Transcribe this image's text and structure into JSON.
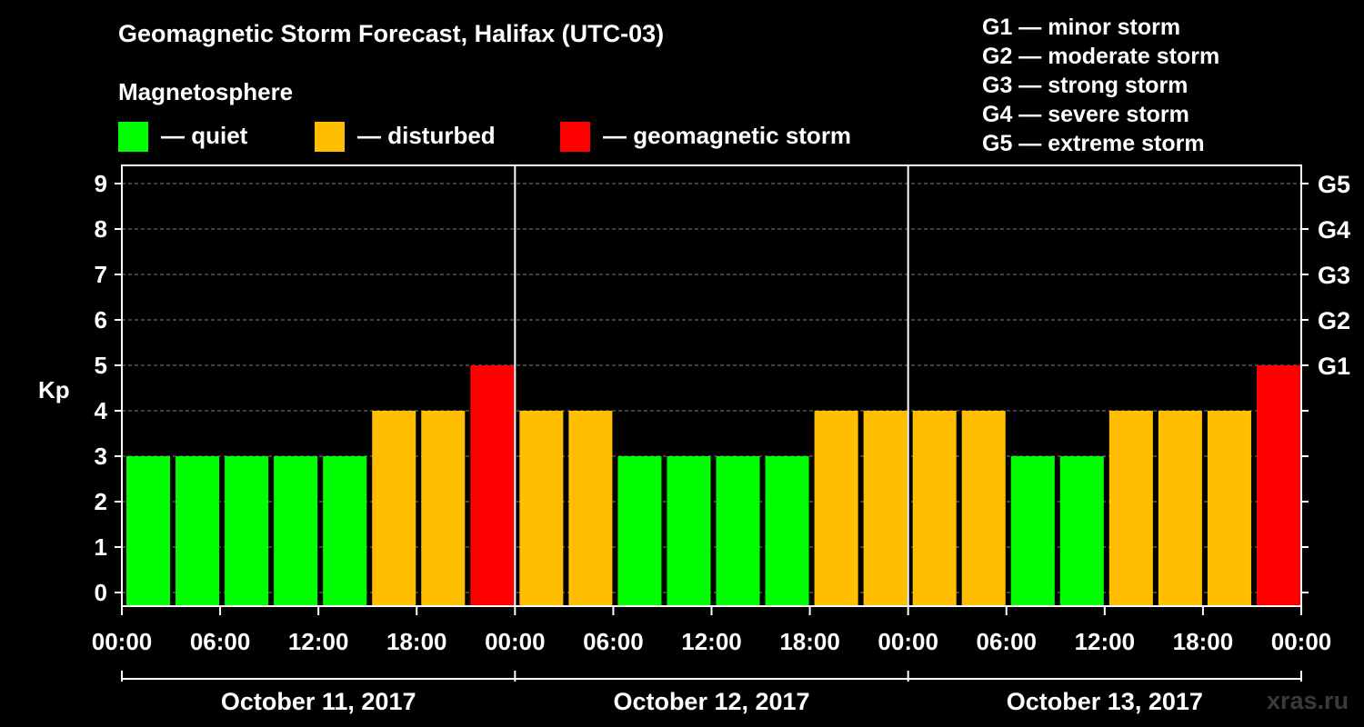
{
  "title": "Geomagnetic Storm Forecast, Halifax (UTC-03)",
  "magnetosphere": {
    "title": "Magnetosphere",
    "legend": [
      {
        "label": "— quiet",
        "color": "#00ff00"
      },
      {
        "label": "— disturbed",
        "color": "#ffbf00"
      },
      {
        "label": "— geomagnetic storm",
        "color": "#ff0000"
      }
    ]
  },
  "storm_scale": [
    "G1 — minor storm",
    "G2 — moderate storm",
    "G3 — strong storm",
    "G4 — severe storm",
    "G5 — extreme storm"
  ],
  "watermark": "xras.ru",
  "chart_data": {
    "type": "bar",
    "title": "Geomagnetic Storm Forecast, Halifax (UTC-03)",
    "ylabel": "Kp",
    "ylim": [
      0,
      9
    ],
    "yticks": [
      "0",
      "1",
      "2",
      "3",
      "4",
      "5",
      "6",
      "7",
      "8",
      "9"
    ],
    "right_ticks": [
      {
        "value": 5,
        "label": "G1"
      },
      {
        "value": 6,
        "label": "G2"
      },
      {
        "value": 7,
        "label": "G3"
      },
      {
        "value": 8,
        "label": "G4"
      },
      {
        "value": 9,
        "label": "G5"
      }
    ],
    "grid": true,
    "xticks": [
      "00:00",
      "06:00",
      "12:00",
      "18:00",
      "00:00",
      "06:00",
      "12:00",
      "18:00",
      "00:00",
      "06:00",
      "12:00",
      "18:00",
      "00:00"
    ],
    "days": [
      "October 11, 2017",
      "October 12, 2017",
      "October 13, 2017"
    ],
    "interval_hours": 3,
    "values": [
      3,
      3,
      3,
      3,
      3,
      4,
      4,
      5,
      4,
      4,
      3,
      3,
      3,
      3,
      4,
      4,
      4,
      4,
      3,
      3,
      4,
      4,
      4,
      5
    ],
    "colors": {
      "quiet": "#00ff00",
      "disturbed": "#ffbf00",
      "storm": "#ff0000"
    }
  }
}
